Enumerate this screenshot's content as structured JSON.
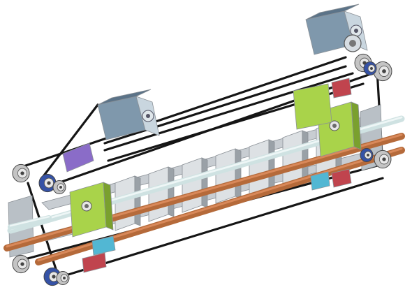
{
  "colors": {
    "background": "#ffffff",
    "motor_body": "#7f98ac",
    "motor_dark": "#5b7388",
    "motor_face": "#c9d6df",
    "belt": "#151515",
    "rod_copper": "#b56a3a",
    "rod_copper_light": "#d9895a",
    "rod_steel": "#cfe2e2",
    "plate_metal": "#c8cdd2",
    "plate_edge": "#8a9096",
    "carriage_green": "#a9d34a",
    "carriage_green_dark": "#7aa02e",
    "pulley_grey": "#c4c4c4",
    "pulley_blue": "#3552a6",
    "bracket_purple": "#8a6cc8",
    "bracket_red": "#c0444e",
    "bracket_cyan": "#52b7d3"
  },
  "icons": [
    "stepper-motor-icon",
    "pulley-icon",
    "carriage-icon"
  ]
}
